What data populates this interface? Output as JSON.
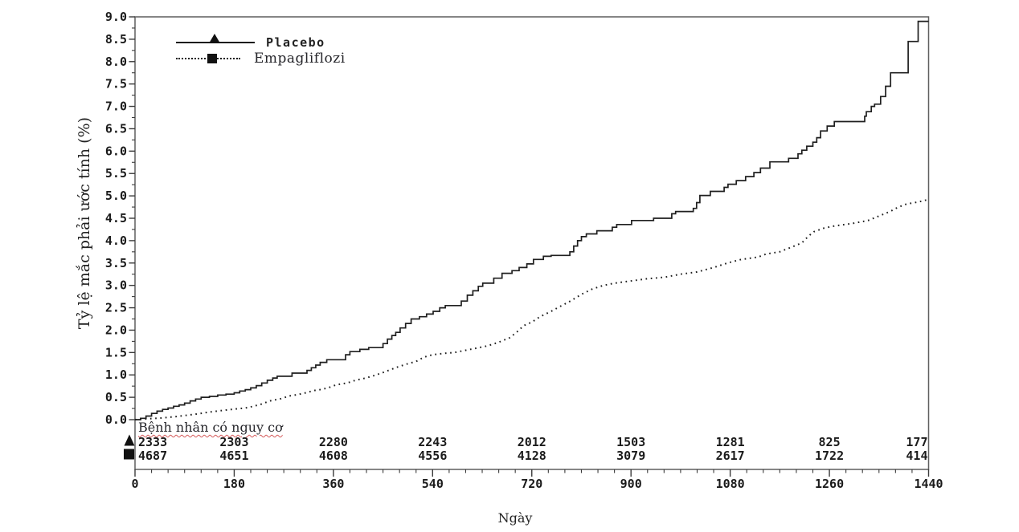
{
  "figure": {
    "background": "#ffffff",
    "axis_color": "#5f5f5f",
    "tick_color": "#3a3a3a",
    "curve_color": "#1f1f1f",
    "text_color": "#1b1b1b",
    "risk_underline_color": "#d45858"
  },
  "legend": {
    "items": [
      {
        "label": "Placebo",
        "marker": "triangle",
        "line_style": "solid"
      },
      {
        "label": "Empagliflozi",
        "marker": "square",
        "line_style": "dotted"
      }
    ]
  },
  "chart_data": {
    "type": "line",
    "subtype": "kaplan-meier-cumulative-incidence",
    "title": "",
    "xlabel": "Ngày",
    "ylabel": "Tỷ lệ mắc phải ước tính (%)",
    "xlim": [
      0,
      1440
    ],
    "ylim": [
      0,
      9
    ],
    "x_axis": {
      "major_step": 180,
      "minor_step": 30,
      "tick_labels": [
        "0",
        "180",
        "360",
        "540",
        "720",
        "900",
        "1080",
        "1260",
        "1440"
      ],
      "tick_values": [
        0,
        180,
        360,
        540,
        720,
        900,
        1080,
        1260,
        1440
      ]
    },
    "y_axis": {
      "major_step": 0.5,
      "minor_step": 0.25,
      "tick_labels": [
        "0.0",
        "0.5",
        "1.0",
        "1.5",
        "2.0",
        "2.5",
        "3.0",
        "3.5",
        "4.0",
        "4.5",
        "5.0",
        "5.5",
        "6.0",
        "6.5",
        "7.0",
        "7.5",
        "8.0",
        "8.5",
        "9.0"
      ],
      "tick_values": [
        0,
        0.5,
        1,
        1.5,
        2,
        2.5,
        3,
        3.5,
        4,
        4.5,
        5,
        5.5,
        6,
        6.5,
        7,
        7.5,
        8,
        8.5,
        9
      ]
    },
    "grid": false,
    "legend_position": "top-left-inside",
    "series": [
      {
        "name": "Placebo",
        "line_style": "solid",
        "marker": "triangle",
        "interpolation": "step-after",
        "x": [
          0,
          10,
          20,
          30,
          40,
          50,
          60,
          70,
          80,
          90,
          100,
          110,
          120,
          135,
          150,
          165,
          180,
          190,
          200,
          210,
          220,
          230,
          240,
          250,
          258,
          285,
          312,
          320,
          328,
          336,
          348,
          382,
          390,
          408,
          424,
          450,
          458,
          466,
          473,
          481,
          491,
          501,
          516,
          529,
          541,
          553,
          563,
          592,
          603,
          613,
          623,
          631,
          651,
          666,
          684,
          697,
          711,
          723,
          741,
          755,
          789,
          796,
          803,
          810,
          819,
          838,
          866,
          874,
          901,
          941,
          974,
          981,
          1013,
          1019,
          1025,
          1044,
          1069,
          1076,
          1091,
          1108,
          1123,
          1135,
          1152,
          1186,
          1203,
          1210,
          1219,
          1230,
          1237,
          1244,
          1256,
          1269,
          1324,
          1327,
          1336,
          1342,
          1353,
          1362,
          1371,
          1403,
          1421,
          1440
        ],
        "y": [
          0,
          0.03,
          0.08,
          0.14,
          0.19,
          0.23,
          0.26,
          0.3,
          0.33,
          0.37,
          0.42,
          0.46,
          0.5,
          0.52,
          0.55,
          0.57,
          0.6,
          0.64,
          0.67,
          0.71,
          0.76,
          0.82,
          0.88,
          0.93,
          0.97,
          1.04,
          1.1,
          1.16,
          1.22,
          1.28,
          1.34,
          1.45,
          1.52,
          1.57,
          1.61,
          1.7,
          1.8,
          1.88,
          1.95,
          2.05,
          2.15,
          2.25,
          2.3,
          2.36,
          2.42,
          2.5,
          2.55,
          2.65,
          2.78,
          2.88,
          2.98,
          3.05,
          3.16,
          3.27,
          3.33,
          3.4,
          3.48,
          3.58,
          3.65,
          3.67,
          3.75,
          3.88,
          4.0,
          4.09,
          4.15,
          4.22,
          4.3,
          4.36,
          4.45,
          4.5,
          4.6,
          4.65,
          4.72,
          4.85,
          5.01,
          5.1,
          5.19,
          5.26,
          5.34,
          5.43,
          5.52,
          5.62,
          5.76,
          5.84,
          5.94,
          6.02,
          6.11,
          6.2,
          6.3,
          6.45,
          6.56,
          6.66,
          6.78,
          6.88,
          7.0,
          7.05,
          7.22,
          7.45,
          7.75,
          8.45,
          8.9,
          8.9
        ]
      },
      {
        "name": "Empagliflozi",
        "line_style": "dotted",
        "marker": "square",
        "interpolation": "linear",
        "x": [
          0,
          25,
          50,
          75,
          95,
          115,
          135,
          155,
          175,
          200,
          215,
          230,
          245,
          265,
          280,
          295,
          310,
          325,
          340,
          355,
          365,
          385,
          400,
          415,
          430,
          445,
          460,
          475,
          495,
          510,
          525,
          540,
          560,
          580,
          600,
          620,
          640,
          660,
          680,
          695,
          705,
          720,
          735,
          755,
          770,
          790,
          810,
          830,
          850,
          870,
          900,
          930,
          960,
          990,
          1020,
          1050,
          1075,
          1100,
          1130,
          1145,
          1170,
          1190,
          1210,
          1222,
          1232,
          1250,
          1270,
          1300,
          1330,
          1350,
          1370,
          1385,
          1400,
          1420,
          1440
        ],
        "y": [
          0,
          0.02,
          0.04,
          0.07,
          0.1,
          0.13,
          0.17,
          0.2,
          0.23,
          0.26,
          0.3,
          0.35,
          0.42,
          0.47,
          0.53,
          0.56,
          0.6,
          0.65,
          0.68,
          0.73,
          0.78,
          0.82,
          0.88,
          0.92,
          0.97,
          1.03,
          1.1,
          1.17,
          1.25,
          1.3,
          1.4,
          1.45,
          1.48,
          1.5,
          1.55,
          1.6,
          1.65,
          1.73,
          1.83,
          1.98,
          2.1,
          2.18,
          2.3,
          2.42,
          2.52,
          2.65,
          2.8,
          2.92,
          3.0,
          3.05,
          3.1,
          3.15,
          3.18,
          3.25,
          3.3,
          3.4,
          3.5,
          3.58,
          3.63,
          3.7,
          3.75,
          3.85,
          3.95,
          4.1,
          4.2,
          4.28,
          4.33,
          4.38,
          4.45,
          4.55,
          4.65,
          4.75,
          4.82,
          4.86,
          4.92
        ]
      }
    ],
    "risk_table": {
      "header": "Bệnh nhân có nguy cơ",
      "time_points": [
        0,
        180,
        360,
        540,
        720,
        900,
        1080,
        1260,
        1440
      ],
      "rows": [
        {
          "series": "Placebo",
          "marker": "triangle",
          "counts": [
            "2333",
            "2303",
            "2280",
            "2243",
            "2012",
            "1503",
            "1281",
            "825",
            "177"
          ]
        },
        {
          "series": "Empagliflozi",
          "marker": "square",
          "counts": [
            "4687",
            "4651",
            "4608",
            "4556",
            "4128",
            "3079",
            "2617",
            "1722",
            "414"
          ]
        }
      ]
    }
  }
}
